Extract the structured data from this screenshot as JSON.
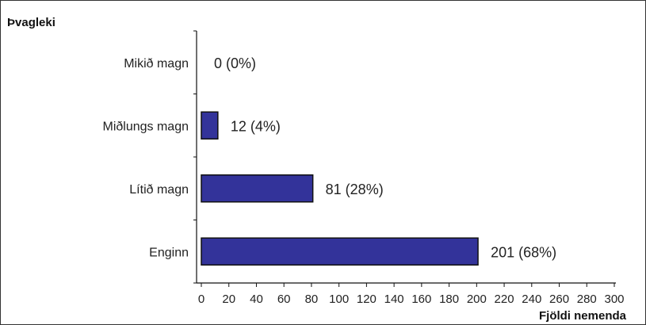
{
  "chart_data": {
    "type": "bar",
    "orientation": "horizontal",
    "ylabel": "Þvagleki",
    "xlabel": "Fjöldi nemenda",
    "categories": [
      "Mikið magn",
      "Miðlungs magn",
      "Lítið magn",
      "Enginn"
    ],
    "values": [
      0,
      12,
      81,
      201
    ],
    "data_labels": [
      "0 (0%)",
      "12 (4%)",
      "81 (28%)",
      "201 (68%)"
    ],
    "xlim": [
      0,
      300
    ],
    "xticks": [
      0,
      20,
      40,
      60,
      80,
      100,
      120,
      140,
      160,
      180,
      200,
      220,
      240,
      260,
      280,
      300
    ],
    "grid": false,
    "bar_color": "#33339a",
    "bar_edge_color": "#111111"
  }
}
